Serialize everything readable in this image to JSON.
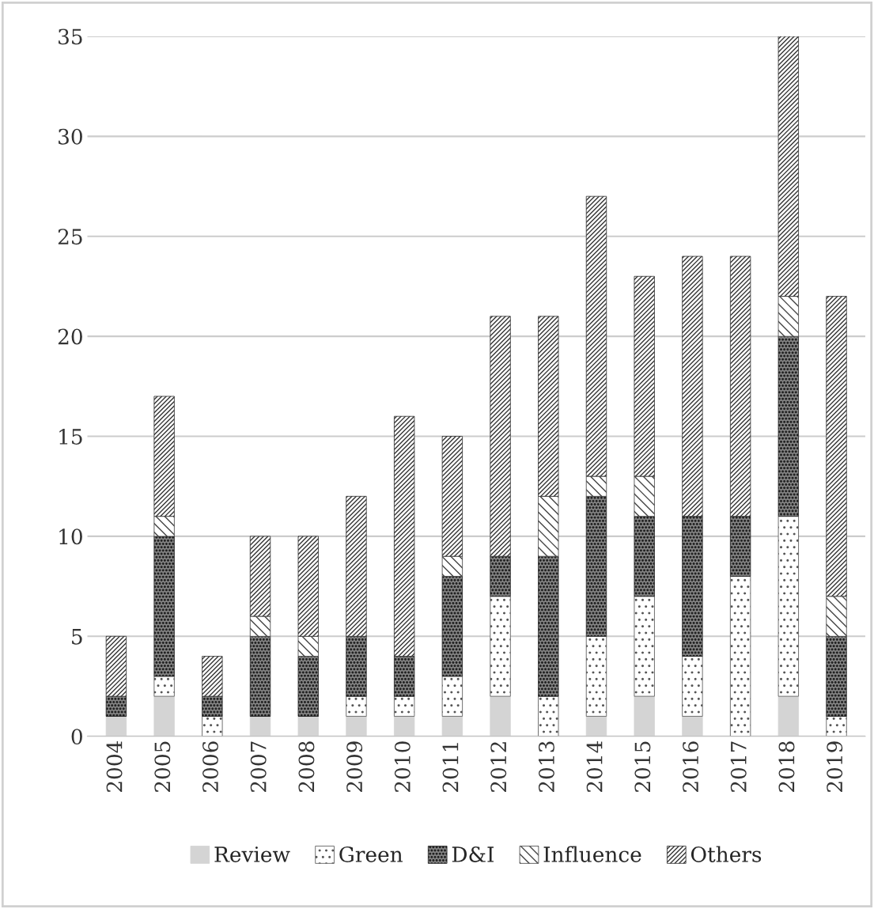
{
  "chart_data": {
    "type": "bar",
    "stacked": true,
    "categories": [
      "2004",
      "2005",
      "2006",
      "2007",
      "2008",
      "2009",
      "2010",
      "2011",
      "2012",
      "2013",
      "2014",
      "2015",
      "2016",
      "2017",
      "2018",
      "2019"
    ],
    "series": [
      {
        "name": "Review",
        "color": "#d4d4d4",
        "values": [
          1,
          2,
          0,
          1,
          1,
          1,
          1,
          1,
          2,
          0,
          1,
          2,
          1,
          0,
          2,
          0
        ]
      },
      {
        "name": "Green",
        "color": "#555555",
        "values": [
          0,
          1,
          1,
          0,
          0,
          1,
          1,
          2,
          5,
          2,
          4,
          5,
          3,
          8,
          9,
          1
        ]
      },
      {
        "name": "D&I",
        "color": "#222222",
        "values": [
          1,
          7,
          1,
          4,
          3,
          3,
          2,
          5,
          2,
          7,
          7,
          4,
          7,
          3,
          9,
          4
        ]
      },
      {
        "name": "Influence",
        "color": "#444444",
        "values": [
          0,
          1,
          0,
          1,
          1,
          0,
          0,
          1,
          0,
          3,
          1,
          2,
          0,
          0,
          2,
          2
        ]
      },
      {
        "name": "Others",
        "color": "#333333",
        "values": [
          3,
          6,
          2,
          4,
          5,
          7,
          12,
          6,
          12,
          9,
          14,
          10,
          13,
          13,
          13,
          15
        ]
      }
    ],
    "ylim": [
      0,
      35
    ],
    "yticks": [
      0,
      5,
      10,
      15,
      20,
      25,
      30,
      35
    ],
    "grid": "y",
    "legend": "bottom"
  }
}
